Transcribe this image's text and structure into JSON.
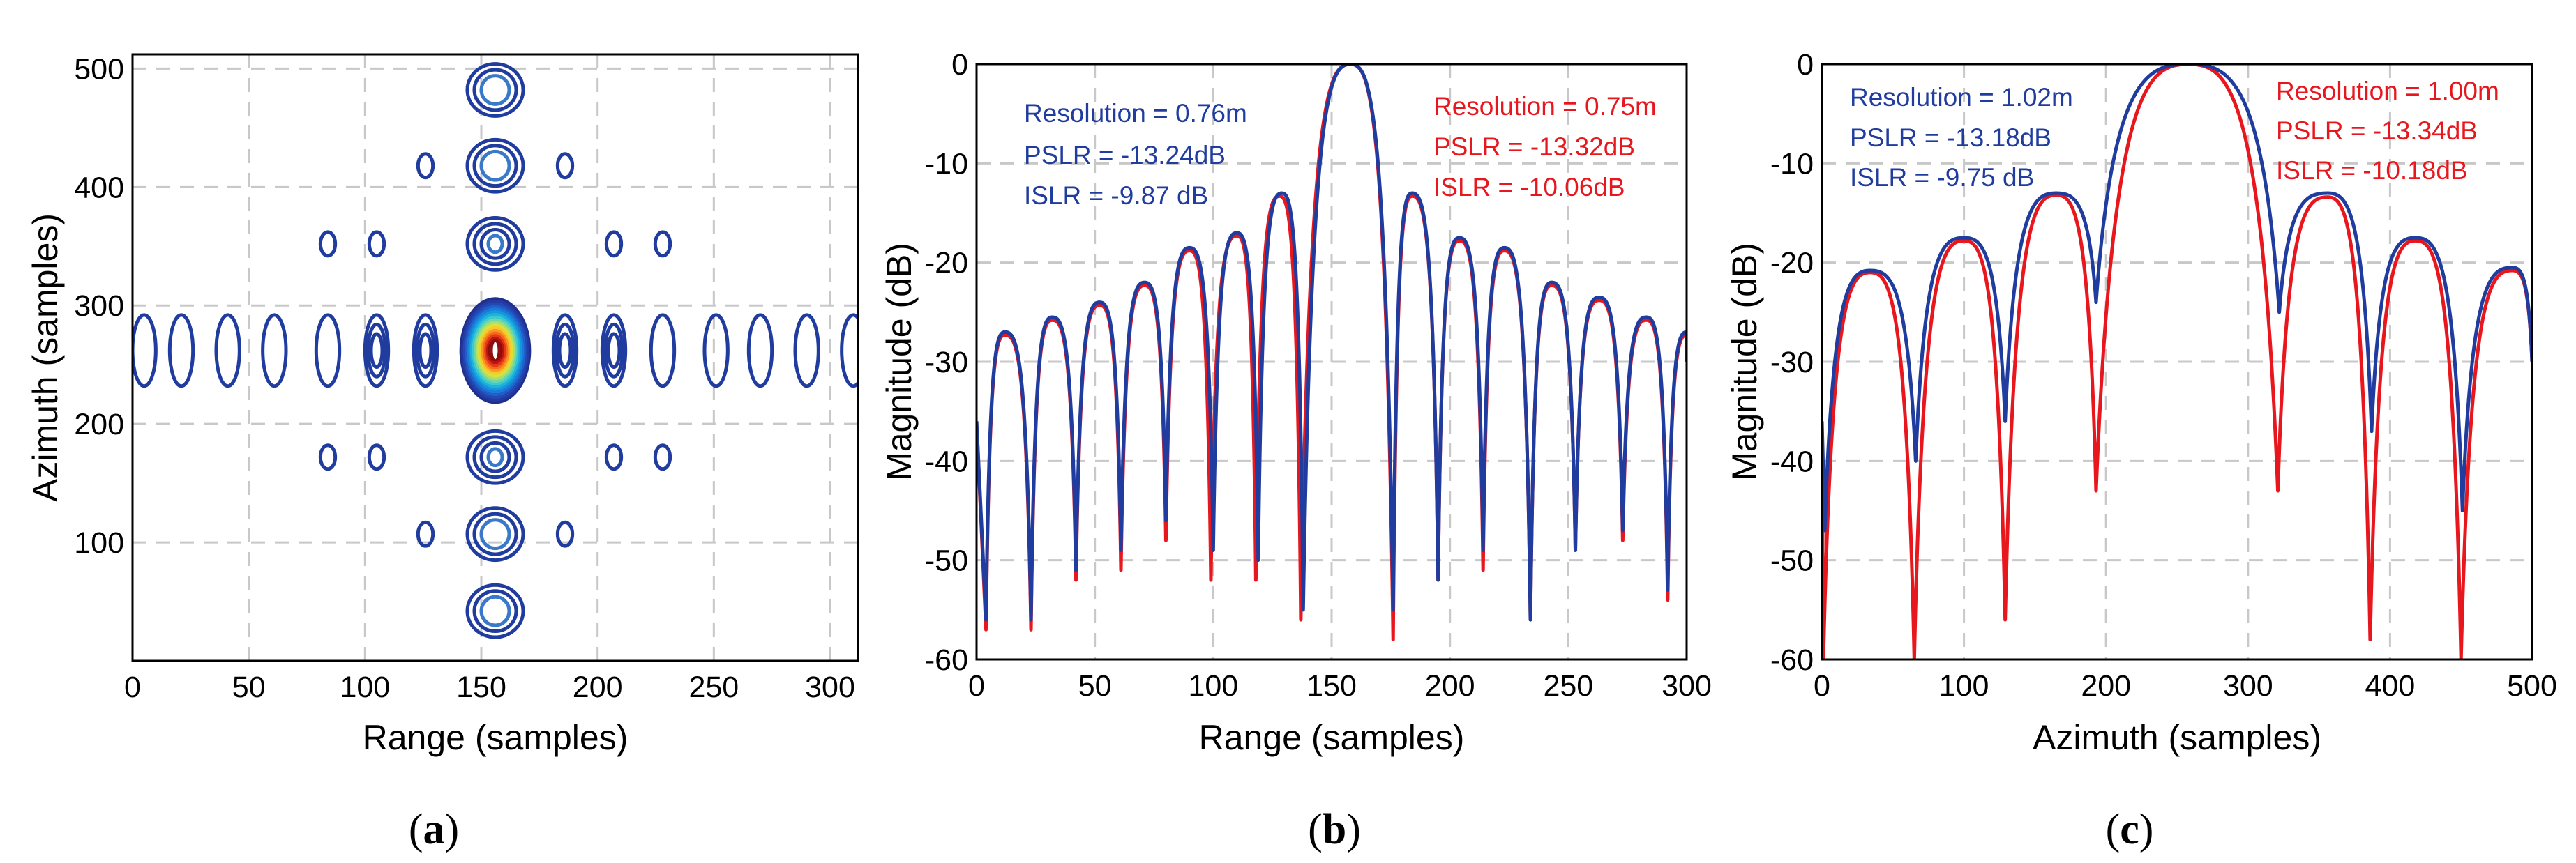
{
  "colors": {
    "blue": "#1f3c9e",
    "red": "#e8161d"
  },
  "chart_data": [
    {
      "type": "contour",
      "caption": "(a)",
      "title": "",
      "xlabel": "Range (samples)",
      "ylabel": "Azimuth (samples)",
      "xlim": [
        0,
        312
      ],
      "ylim": [
        0,
        512
      ],
      "xticks": [
        0,
        50,
        100,
        150,
        200,
        250,
        300
      ],
      "yticks": [
        100,
        200,
        300,
        400,
        500
      ],
      "peak": {
        "x": 156,
        "y": 262
      },
      "range_sidelobes_x": [
        5,
        21,
        41,
        61,
        84,
        105,
        126,
        186,
        207,
        228,
        251,
        270,
        290,
        310
      ],
      "azimuth_sidelobes_y": [
        42,
        107,
        172,
        352,
        418,
        482
      ],
      "diagonal_sidelobes": [
        [
          84,
          172
        ],
        [
          105,
          172
        ],
        [
          207,
          172
        ],
        [
          228,
          172
        ],
        [
          84,
          352
        ],
        [
          105,
          352
        ],
        [
          207,
          352
        ],
        [
          228,
          352
        ],
        [
          126,
          418
        ],
        [
          186,
          418
        ],
        [
          126,
          107
        ],
        [
          186,
          107
        ]
      ]
    },
    {
      "type": "line",
      "caption": "(b)",
      "xlabel": "Range (samples)",
      "ylabel": "Magnitude (dB)",
      "xlim": [
        0,
        300
      ],
      "ylim": [
        -60,
        0
      ],
      "xticks": [
        0,
        50,
        100,
        150,
        200,
        250,
        300
      ],
      "yticks": [
        0,
        -10,
        -20,
        -30,
        -40,
        -50,
        -60
      ],
      "peak_x": 158,
      "series": [
        {
          "name": "blue",
          "annotation": [
            "Resolution = 0.76m",
            "PSLR = -13.24dB",
            "ISLR = -9.87 dB"
          ],
          "nulls": [
            [
              4,
              -56
            ],
            [
              23,
              -56
            ],
            [
              42,
              -51
            ],
            [
              61,
              -49
            ],
            [
              80,
              -46
            ],
            [
              100,
              -49
            ],
            [
              119,
              -50
            ],
            [
              138,
              -55
            ],
            [
              176,
              -55
            ],
            [
              195,
              -52
            ],
            [
              214,
              -49
            ],
            [
              234,
              -56
            ],
            [
              253,
              -49
            ],
            [
              273,
              -47
            ],
            [
              292,
              -53
            ]
          ],
          "lobes": [
            [
              12,
              -27
            ],
            [
              32,
              -25.5
            ],
            [
              52,
              -24
            ],
            [
              71,
              -22
            ],
            [
              90,
              -18.5
            ],
            [
              110,
              -17
            ],
            [
              129,
              -13
            ],
            [
              184,
              -13
            ],
            [
              204,
              -17.5
            ],
            [
              223,
              -18.5
            ],
            [
              243,
              -22
            ],
            [
              263,
              -23.5
            ],
            [
              283,
              -25.5
            ],
            [
              300,
              -27
            ]
          ]
        },
        {
          "name": "red",
          "annotation": [
            "Resolution = 0.75m",
            "PSLR = -13.32dB",
            "ISLR = -10.06dB"
          ],
          "nulls": [
            [
              4,
              -57
            ],
            [
              23,
              -57
            ],
            [
              42,
              -52
            ],
            [
              61,
              -51
            ],
            [
              80,
              -48
            ],
            [
              99,
              -52
            ],
            [
              118,
              -52
            ],
            [
              137,
              -56
            ],
            [
              176,
              -58
            ],
            [
              195,
              -52
            ],
            [
              214,
              -51
            ],
            [
              234,
              -56
            ],
            [
              253,
              -49
            ],
            [
              273,
              -48
            ],
            [
              292,
              -54
            ]
          ],
          "lobes": [
            [
              12,
              -27.3
            ],
            [
              32,
              -25.8
            ],
            [
              52,
              -24.3
            ],
            [
              71,
              -22.3
            ],
            [
              90,
              -18.8
            ],
            [
              110,
              -17.3
            ],
            [
              128,
              -13.3
            ],
            [
              184,
              -13.3
            ],
            [
              204,
              -17.8
            ],
            [
              223,
              -18.8
            ],
            [
              243,
              -22.3
            ],
            [
              263,
              -23.8
            ],
            [
              283,
              -25.8
            ],
            [
              300,
              -27.3
            ]
          ]
        }
      ]
    },
    {
      "type": "line",
      "caption": "(c)",
      "xlabel": "Azimuth (samples)",
      "ylabel": "Magnitude (dB)",
      "xlim": [
        0,
        500
      ],
      "ylim": [
        -60,
        0
      ],
      "xticks": [
        0,
        100,
        200,
        300,
        400,
        500
      ],
      "yticks": [
        0,
        -10,
        -20,
        -30,
        -40,
        -50,
        -60
      ],
      "peak_x": 258,
      "series": [
        {
          "name": "blue",
          "annotation": [
            "Resolution = 1.02m",
            "PSLR = -13.18dB",
            "ISLR = -9.75 dB"
          ],
          "nulls": [
            [
              2,
              -47
            ],
            [
              66,
              -40
            ],
            [
              129,
              -36
            ],
            [
              193,
              -24
            ],
            [
              322,
              -25
            ],
            [
              387,
              -37
            ],
            [
              451,
              -45
            ]
          ],
          "lobes": [
            [
              34,
              -20.8
            ],
            [
              100,
              -17.5
            ],
            [
              165,
              -13
            ],
            [
              356,
              -13
            ],
            [
              418,
              -17.5
            ],
            [
              486,
              -20.5
            ]
          ]
        },
        {
          "name": "red",
          "annotation": [
            "Resolution = 1.00m",
            "PSLR = -13.34dB",
            "ISLR = -10.18dB"
          ],
          "nulls": [
            [
              1,
              -60
            ],
            [
              65,
              -60
            ],
            [
              129,
              -56
            ],
            [
              193,
              -43
            ],
            [
              321,
              -43
            ],
            [
              386,
              -58
            ],
            [
              450,
              -60
            ]
          ],
          "lobes": [
            [
              34,
              -21
            ],
            [
              100,
              -17.8
            ],
            [
              165,
              -13.2
            ],
            [
              356,
              -13.4
            ],
            [
              418,
              -17.8
            ],
            [
              486,
              -20.8
            ]
          ]
        }
      ]
    }
  ]
}
